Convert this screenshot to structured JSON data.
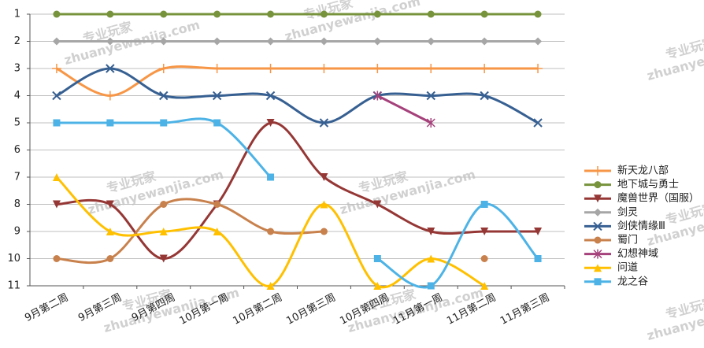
{
  "chart_data": {
    "type": "line",
    "categories": [
      "9月第二周",
      "9月第三周",
      "9月第四周",
      "10月第一周",
      "10月第二周",
      "10月第三周",
      "10月第四周",
      "11月第一周",
      "11月第二周",
      "11月第三周"
    ],
    "series": [
      {
        "name": "新天龙八部",
        "color": "#f79646",
        "marker": "plus",
        "values": [
          3,
          4,
          3,
          3,
          3,
          3,
          3,
          3,
          3,
          3
        ]
      },
      {
        "name": "地下城与勇士",
        "color": "#77933c",
        "marker": "circle",
        "values": [
          1,
          1,
          1,
          1,
          1,
          1,
          1,
          1,
          1,
          1
        ]
      },
      {
        "name": "魔兽世界（国服）",
        "color": "#953735",
        "marker": "triangle-down",
        "values": [
          8,
          8,
          10,
          8,
          5,
          7,
          8,
          9,
          9,
          9
        ]
      },
      {
        "name": "剑灵",
        "color": "#a6a6a6",
        "marker": "diamond",
        "values": [
          2,
          2,
          2,
          2,
          2,
          2,
          2,
          2,
          2,
          2
        ]
      },
      {
        "name": "剑侠情缘Ⅲ",
        "color": "#376092",
        "marker": "x",
        "values": [
          4,
          3,
          4,
          4,
          4,
          5,
          4,
          4,
          4,
          5
        ]
      },
      {
        "name": "蜀门",
        "color": "#c8814c",
        "marker": "circle",
        "values": [
          10,
          10,
          8,
          8,
          9,
          9,
          null,
          null,
          10,
          null
        ]
      },
      {
        "name": "幻想神域",
        "color": "#a5417b",
        "marker": "asterisk",
        "values": [
          null,
          null,
          null,
          null,
          null,
          null,
          4,
          5,
          null,
          null
        ]
      },
      {
        "name": "问道",
        "color": "#ffc000",
        "marker": "triangle-up",
        "values": [
          7,
          9,
          9,
          9,
          11,
          8,
          11,
          10,
          11,
          null
        ]
      },
      {
        "name": "龙之谷",
        "color": "#4db3e6",
        "marker": "square",
        "values": [
          5,
          5,
          5,
          5,
          7,
          null,
          10,
          11,
          8,
          10
        ]
      }
    ],
    "ylim": [
      1,
      11
    ],
    "y_reversed": true,
    "yticks": [
      1,
      2,
      3,
      4,
      5,
      6,
      7,
      8,
      9,
      10,
      11
    ],
    "grid": true,
    "smooth": true,
    "legend": "right",
    "watermark": {
      "cn": "专业玩家",
      "url": "zhuanyewanjia.com"
    }
  }
}
